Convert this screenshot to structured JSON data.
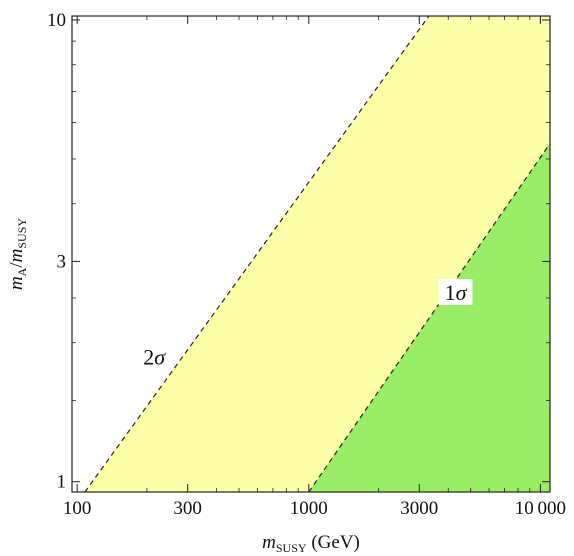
{
  "chart_data": {
    "type": "area",
    "title": "",
    "xlabel": {
      "base": "m",
      "sub": "SUSY",
      "unit": " (GeV)"
    },
    "ylabel": {
      "base": "m",
      "sub_num": "A",
      "sep": "/",
      "base2": "m",
      "sub_den": "SUSY"
    },
    "xscale": "log",
    "yscale": "log",
    "xlim": [
      95,
      11000
    ],
    "ylim": [
      0.95,
      10.2
    ],
    "xticks": [
      100,
      300,
      1000,
      3000,
      10000
    ],
    "xtick_labels": [
      "100",
      "300",
      "1000",
      "3000",
      "10 000"
    ],
    "yticks": [
      1,
      3,
      10
    ],
    "ytick_labels": [
      "1",
      "3",
      "10"
    ],
    "grid": false,
    "regions": [
      {
        "name": "2σ",
        "color": "#ffffa8",
        "boundary": {
          "x": [
            108,
            3300
          ],
          "y": [
            0.95,
            10.2
          ]
        }
      },
      {
        "name": "1σ",
        "color": "#99ee66",
        "boundary": {
          "x": [
            1000,
            11000
          ],
          "y": [
            0.95,
            5.4
          ]
        }
      }
    ],
    "annotations": [
      {
        "text_base": "2",
        "text_sym": "σ",
        "x": 215,
        "y": 1.85
      },
      {
        "text_base": "1",
        "text_sym": "σ",
        "x": 4300,
        "y": 2.55
      }
    ]
  }
}
